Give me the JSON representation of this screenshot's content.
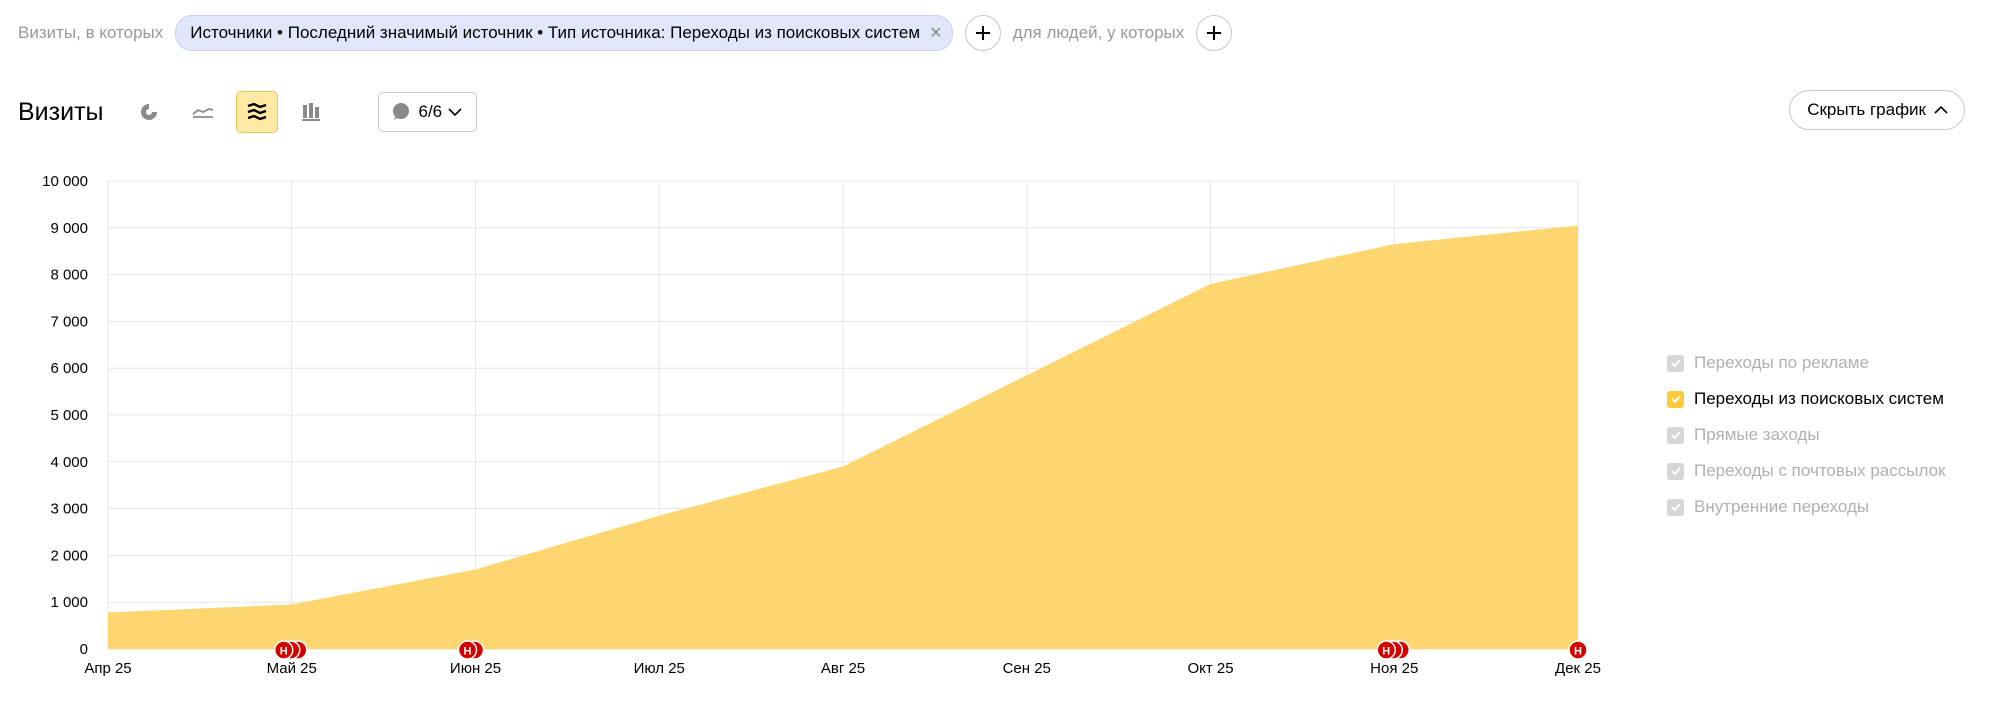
{
  "filters": {
    "visits_prefix": "Визиты, в которых",
    "chip_label": "Источники • Последний значимый источник • Тип источника: Переходы из поисковых систем",
    "people_prefix": "для людей, у которых"
  },
  "header": {
    "title": "Визиты",
    "annotations_count": "6/6",
    "hide_chart_label": "Скрыть график"
  },
  "legend": {
    "items": [
      {
        "label": "Переходы по рекламе",
        "checked": false
      },
      {
        "label": "Переходы из поисковых систем",
        "checked": true
      },
      {
        "label": "Прямые заходы",
        "checked": false
      },
      {
        "label": "Переходы с почтовых рассылок",
        "checked": false
      },
      {
        "label": "Внутренние переходы",
        "checked": false
      }
    ]
  },
  "colors": {
    "area": "#fdd66f",
    "marker": "#d40000",
    "grid": "#e6e6e6",
    "active_button": "#fce9a4"
  },
  "chart_data": {
    "type": "area",
    "x": [
      "Апр 25",
      "Май 25",
      "Июн 25",
      "Июл 25",
      "Авг 25",
      "Сен 25",
      "Окт 25",
      "Ноя 25",
      "Дек 25"
    ],
    "series": [
      {
        "name": "Переходы из поисковых систем",
        "values": [
          780,
          950,
          1700,
          2850,
          3900,
          5850,
          7800,
          8650,
          9050
        ]
      }
    ],
    "ylim": [
      0,
      10000
    ],
    "yticks": [
      {
        "value": 0,
        "label": "0"
      },
      {
        "value": 1000,
        "label": "1 000"
      },
      {
        "value": 2000,
        "label": "2 000"
      },
      {
        "value": 3000,
        "label": "3 000"
      },
      {
        "value": 4000,
        "label": "4 000"
      },
      {
        "value": 5000,
        "label": "5 000"
      },
      {
        "value": 6000,
        "label": "6 000"
      },
      {
        "value": 7000,
        "label": "7 000"
      },
      {
        "value": 8000,
        "label": "8 000"
      },
      {
        "value": 9000,
        "label": "9 000"
      },
      {
        "value": 10000,
        "label": "10 000"
      }
    ],
    "grid": true,
    "legend_position": "right",
    "annotation_groups": [
      {
        "month_index": 1,
        "count": 3,
        "letter": "Н"
      },
      {
        "month_index": 2,
        "count": 2,
        "letter": "Н"
      },
      {
        "month_index": 7,
        "count": 3,
        "letter": "Н"
      },
      {
        "month_index": 8,
        "count": 1,
        "letter": "Н"
      }
    ]
  }
}
